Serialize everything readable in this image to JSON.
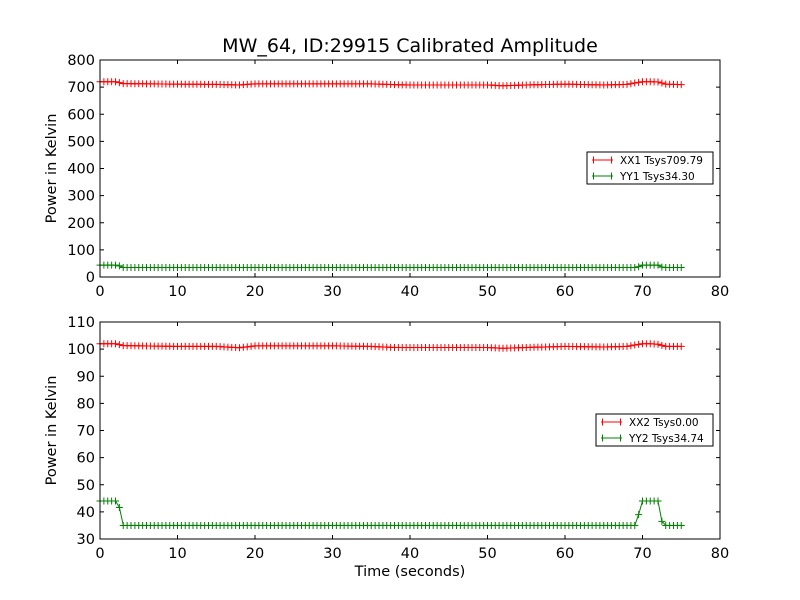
{
  "figure": {
    "title": "MW_64, ID:29915 Calibrated Amplitude"
  },
  "chart_data": [
    {
      "type": "line",
      "xlabel": "",
      "ylabel": "Power in Kelvin",
      "xlim": [
        0,
        80
      ],
      "ylim": [
        0,
        800
      ],
      "xticks": [
        "0",
        "10",
        "20",
        "30",
        "40",
        "50",
        "60",
        "70",
        "80"
      ],
      "yticks": [
        "0",
        "100",
        "200",
        "300",
        "400",
        "500",
        "600",
        "700",
        "800"
      ],
      "legend_position": "center-right",
      "series": [
        {
          "name": "XX1 Tsys709.79",
          "color": "#ff0000",
          "marker": "plus",
          "x": [
            0,
            2,
            3,
            10,
            15,
            18,
            20,
            25,
            30,
            35,
            38,
            40,
            45,
            50,
            52,
            55,
            60,
            65,
            68,
            70,
            71,
            72,
            73,
            75
          ],
          "y": [
            720,
            720,
            713,
            711,
            710,
            708,
            712,
            712,
            712,
            712,
            709,
            708,
            708,
            708,
            705,
            708,
            711,
            708,
            710,
            720,
            720,
            719,
            711,
            709
          ]
        },
        {
          "name": "YY1 Tsys34.30",
          "color": "#008000",
          "marker": "plus",
          "x": [
            0,
            2.3,
            2.8,
            3,
            69,
            69.5,
            70,
            72,
            72.6,
            75
          ],
          "y": [
            44,
            44,
            36,
            35,
            35,
            38,
            44,
            44,
            35,
            35
          ]
        }
      ]
    },
    {
      "type": "line",
      "xlabel": "Time (seconds)",
      "ylabel": "Power in Kelvin",
      "xlim": [
        0,
        80
      ],
      "ylim": [
        30,
        110
      ],
      "xticks": [
        "0",
        "10",
        "20",
        "30",
        "40",
        "50",
        "60",
        "70",
        "80"
      ],
      "yticks": [
        "30",
        "40",
        "50",
        "60",
        "70",
        "80",
        "90",
        "100",
        "110"
      ],
      "legend_position": "center-right",
      "series": [
        {
          "name": "XX2 Tsys0.00",
          "color": "#ff0000",
          "marker": "plus",
          "x": [
            0,
            2,
            3,
            10,
            15,
            18,
            20,
            25,
            30,
            35,
            38,
            40,
            45,
            50,
            52,
            55,
            60,
            65,
            68,
            70,
            71,
            72,
            73,
            75
          ],
          "y": [
            102,
            102,
            101.3,
            101,
            101,
            100.5,
            101.2,
            101.2,
            101.2,
            101,
            100.6,
            100.6,
            100.6,
            100.6,
            100.3,
            100.6,
            101,
            100.8,
            101,
            102,
            102,
            101.8,
            101,
            101
          ]
        },
        {
          "name": "YY2 Tsys34.74",
          "color": "#008000",
          "marker": "plus",
          "x": [
            0,
            2.3,
            2.8,
            3,
            69,
            69.5,
            70,
            72,
            72.6,
            75
          ],
          "y": [
            44,
            44,
            38,
            35,
            35,
            39,
            44,
            44,
            35,
            35
          ]
        }
      ]
    }
  ]
}
